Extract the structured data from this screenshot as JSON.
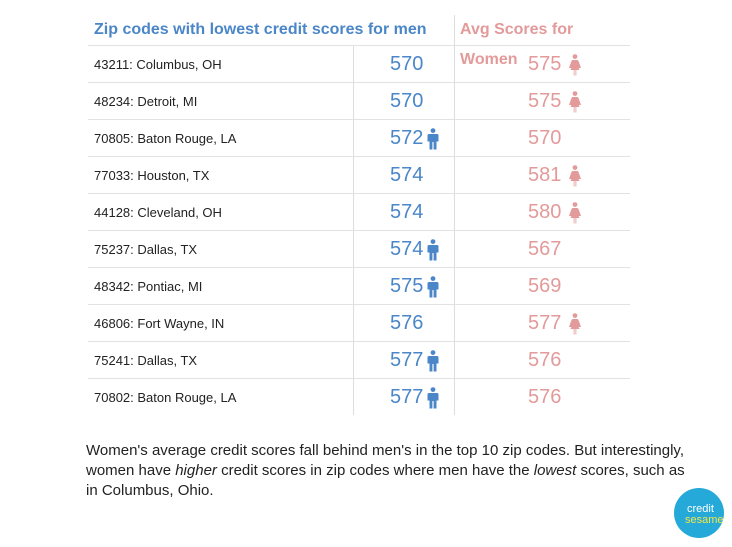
{
  "chart_data": {
    "type": "table",
    "columns": [
      "Zip codes with lowest credit scores for men",
      "Avg Scores for Women"
    ],
    "rows": [
      {
        "location": "43211: Columbus, OH",
        "men": 570,
        "women": 575,
        "higher": "women"
      },
      {
        "location": "48234: Detroit, MI",
        "men": 570,
        "women": 575,
        "higher": "women"
      },
      {
        "location": "70805: Baton Rouge, LA",
        "men": 572,
        "women": 570,
        "higher": "men"
      },
      {
        "location": "77033: Houston, TX",
        "men": 574,
        "women": 581,
        "higher": "women"
      },
      {
        "location": "44128: Cleveland, OH",
        "men": 574,
        "women": 580,
        "higher": "women"
      },
      {
        "location": "75237: Dallas, TX",
        "men": 574,
        "women": 567,
        "higher": "men"
      },
      {
        "location": "48342: Pontiac, MI",
        "men": 575,
        "women": 569,
        "higher": "men"
      },
      {
        "location": "46806: Fort Wayne, IN",
        "men": 576,
        "women": 577,
        "higher": "women"
      },
      {
        "location": "75241: Dallas, TX",
        "men": 577,
        "women": 576,
        "higher": "men"
      },
      {
        "location": "70802: Baton Rouge, LA",
        "men": 577,
        "women": 576,
        "higher": "men"
      }
    ]
  },
  "colors": {
    "men": "#4a86c8",
    "women": "#e39a9a",
    "logo": "#25a9d8",
    "logo_accent": "#f5e64a"
  },
  "icons": {
    "men": "man-icon",
    "women": "woman-icon"
  },
  "caption": {
    "p1": "Women's average credit scores fall behind men's in the top 10 zip codes. But interestingly, women have ",
    "em1": "higher",
    "p2": " credit scores in zip codes where men have the ",
    "em2": "lowest",
    "p3": " scores, such as in Columbus, Ohio."
  },
  "logo": {
    "line1": "credit",
    "line2": "sesame"
  }
}
